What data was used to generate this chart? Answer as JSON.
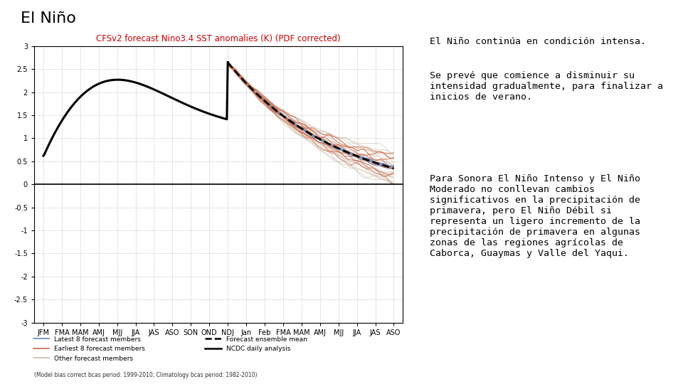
{
  "title": "El Niño",
  "title_fontsize": 16,
  "title_color": "#000000",
  "background_color": "#ffffff",
  "chart_title": "CFSv2 forecast Nino3.4 SST anomalies (K) (PDF corrected)",
  "chart_title_color": "#cc0000",
  "box1_text_line1": "El Niño continúa en condición intensa.",
  "box1_text_line2": "Se prevé que comience a disminuir su\nintensidad gradualmente, para finalizar a\ninicios de verano.",
  "box1_bg": "#8fa8d0",
  "box1_border": "#7090b8",
  "box2_text": "Para Sonora El Niño Intenso y El Niño\nModerado no conllevan cambios\nsignificativos en la precipitación de\nprimavera, pero El Niño Débil si\nrepresenta un ligero incremento de la\nprecipitación de primavera en algunas\nzonas de las regiones agrícolas de\nCaborca, Guaymas y Valle del Yaqui.",
  "box2_bg": "#b8d4a0",
  "box2_border": "#90b878",
  "ylabel_text": "(Model bias correct bcas period: 1999-2010; Climatology bcas period: 1982-2010)",
  "x_ticks": [
    "JFM",
    "FMA",
    "MAM",
    "AMJ",
    "MJJ",
    "JJA",
    "JAS",
    "ASO",
    "SON",
    "OND",
    "NDJ",
    "Jan",
    "Feb",
    "FMA",
    "MAM",
    "AMJ",
    "MJJ",
    "JJA",
    "JAS",
    "ASO"
  ],
  "ylim": [
    -3,
    3
  ],
  "yticks": [
    -3,
    -2.5,
    -2,
    -1.5,
    -1,
    -0.5,
    0,
    0.5,
    1,
    1.5,
    2,
    2.5,
    3
  ],
  "ncdc_color": "#000000",
  "ens_mean_color": "#000000",
  "latest8_color": "#6688bb",
  "earliest8_color": "#cc6644",
  "other_color": "#ccbbaa",
  "font_size_box": 9.5
}
